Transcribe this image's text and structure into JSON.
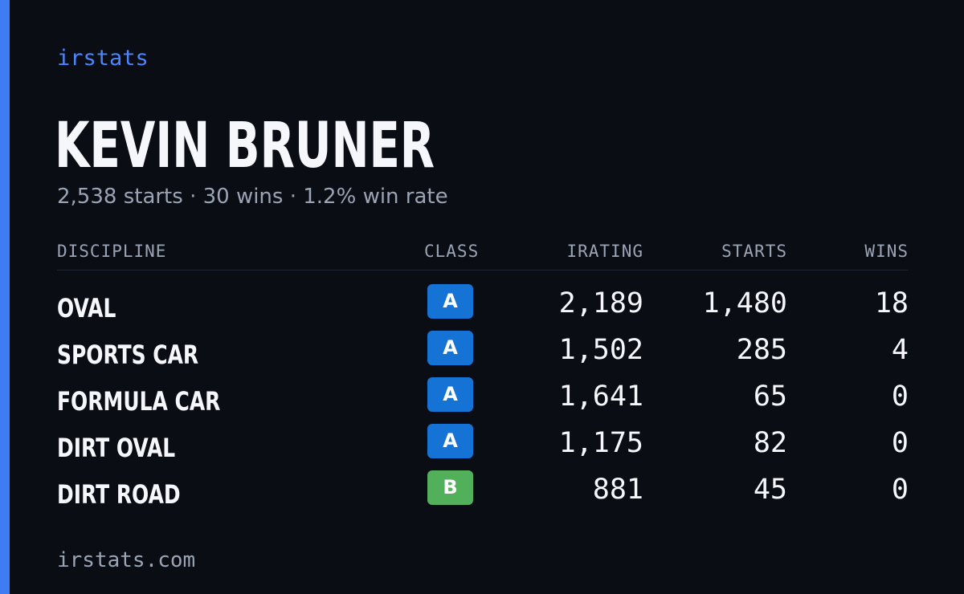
{
  "colors": {
    "accent": "#3d7cf2",
    "brand_text": "#4a86ff",
    "class_a": "#1573d6",
    "class_b": "#52b05a"
  },
  "brand": "irstats",
  "player": {
    "name": "KEVIN BRUNER",
    "summary": "2,538 starts · 30 wins · 1.2% win rate"
  },
  "table": {
    "headers": {
      "discipline": "DISCIPLINE",
      "class": "CLASS",
      "irating": "IRATING",
      "starts": "STARTS",
      "wins": "WINS"
    },
    "rows": [
      {
        "discipline": "OVAL",
        "class": "A",
        "irating": "2,189",
        "starts": "1,480",
        "wins": "18"
      },
      {
        "discipline": "SPORTS CAR",
        "class": "A",
        "irating": "1,502",
        "starts": "285",
        "wins": "4"
      },
      {
        "discipline": "FORMULA CAR",
        "class": "A",
        "irating": "1,641",
        "starts": "65",
        "wins": "0"
      },
      {
        "discipline": "DIRT OVAL",
        "class": "A",
        "irating": "1,175",
        "starts": "82",
        "wins": "0"
      },
      {
        "discipline": "DIRT ROAD",
        "class": "B",
        "irating": "881",
        "starts": "45",
        "wins": "0"
      }
    ]
  },
  "footer": {
    "domain": "irstats.com"
  }
}
